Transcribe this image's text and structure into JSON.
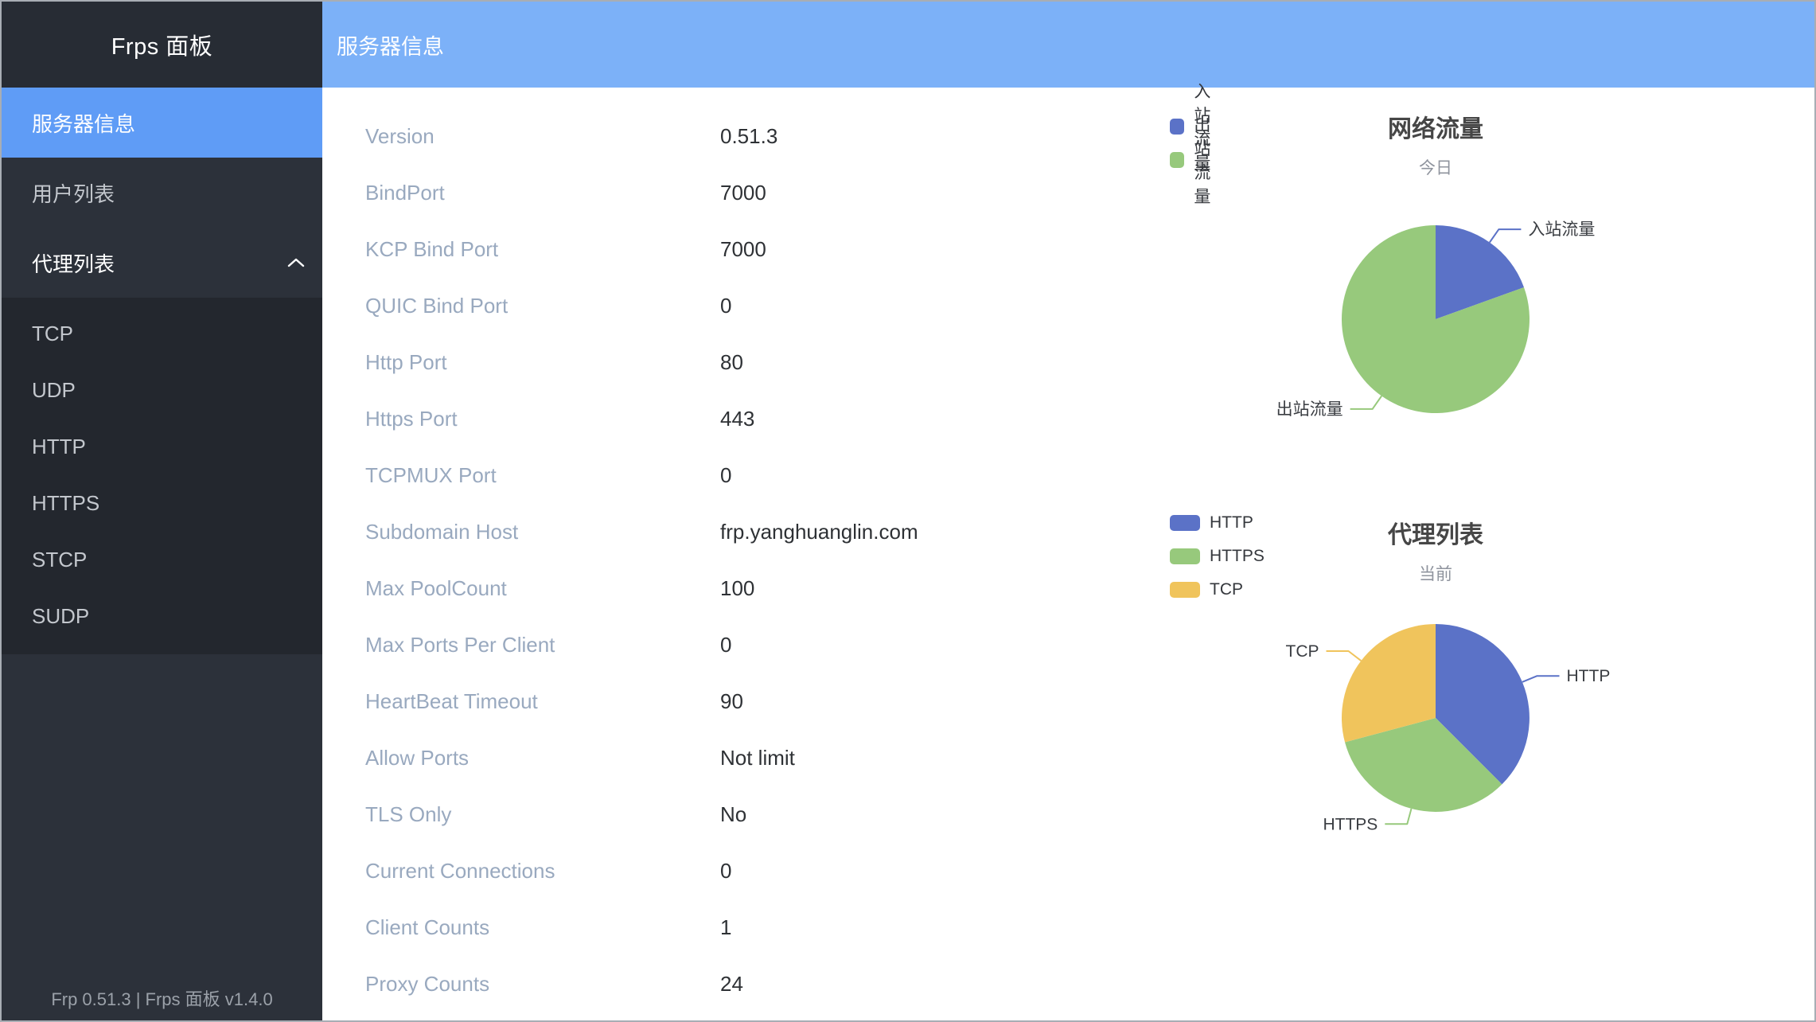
{
  "app": {
    "sidebar_title": "Frps 面板",
    "footer": "Frp 0.51.3 | Frps 面板 v1.4.0"
  },
  "header": {
    "title": "服务器信息"
  },
  "sidebar": {
    "items": [
      {
        "key": "server-info",
        "label": "服务器信息",
        "active": true
      },
      {
        "key": "user-list",
        "label": "用户列表",
        "active": false
      },
      {
        "key": "proxy-list",
        "label": "代理列表",
        "active": false,
        "expanded": true,
        "children": [
          {
            "key": "tcp",
            "label": "TCP"
          },
          {
            "key": "udp",
            "label": "UDP"
          },
          {
            "key": "http",
            "label": "HTTP"
          },
          {
            "key": "https",
            "label": "HTTPS"
          },
          {
            "key": "stcp",
            "label": "STCP"
          },
          {
            "key": "sudp",
            "label": "SUDP"
          }
        ]
      }
    ]
  },
  "server_info": {
    "rows": [
      {
        "label": "Version",
        "value": "0.51.3"
      },
      {
        "label": "BindPort",
        "value": "7000"
      },
      {
        "label": "KCP Bind Port",
        "value": "7000"
      },
      {
        "label": "QUIC Bind Port",
        "value": "0"
      },
      {
        "label": "Http Port",
        "value": "80"
      },
      {
        "label": "Https Port",
        "value": "443"
      },
      {
        "label": "TCPMUX Port",
        "value": "0"
      },
      {
        "label": "Subdomain Host",
        "value": "frp.yanghuanglin.com"
      },
      {
        "label": "Max PoolCount",
        "value": "100"
      },
      {
        "label": "Max Ports Per Client",
        "value": "0"
      },
      {
        "label": "HeartBeat Timeout",
        "value": "90"
      },
      {
        "label": "Allow Ports",
        "value": "Not limit"
      },
      {
        "label": "TLS Only",
        "value": "No"
      },
      {
        "label": "Current Connections",
        "value": "0"
      },
      {
        "label": "Client Counts",
        "value": "1"
      },
      {
        "label": "Proxy Counts",
        "value": "24"
      }
    ]
  },
  "chart_data": [
    {
      "key": "network-traffic",
      "type": "pie",
      "title": "网络流量",
      "subtitle": "今日",
      "legend_position": "top-left",
      "label_lines": true,
      "series": [
        {
          "name": "入站流量",
          "value": 19.5,
          "color": "#5b72c7"
        },
        {
          "name": "出站流量",
          "value": 80.5,
          "color": "#97c97c"
        }
      ],
      "value_unit": "percent-estimate"
    },
    {
      "key": "proxy-list",
      "type": "pie",
      "title": "代理列表",
      "subtitle": "当前",
      "legend_position": "top-left",
      "label_lines": true,
      "series": [
        {
          "name": "HTTP",
          "value": 9,
          "color": "#5b72c7"
        },
        {
          "name": "HTTPS",
          "value": 8,
          "color": "#97c97c"
        },
        {
          "name": "TCP",
          "value": 7,
          "color": "#f0c45c"
        }
      ],
      "value_unit": "proxy-count"
    }
  ],
  "theme": {
    "header_bg": "#7cb1f8",
    "active_item_bg": "#5f9cf6",
    "sidebar_bg": "#2c313a",
    "sidebar_submenu_bg": "#23272e",
    "label_color": "#99a9bf",
    "value_color": "#2e3135"
  }
}
